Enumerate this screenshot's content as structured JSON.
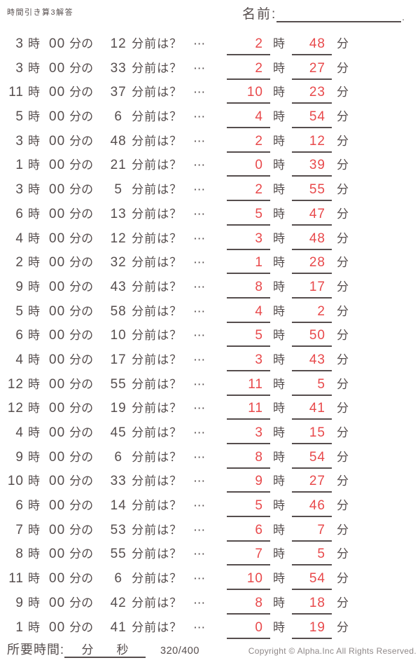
{
  "header": {
    "title": "時間引き算3解答",
    "name_label": "名前:",
    "name_suffix": "."
  },
  "row_text": {
    "hour_unit": "時",
    "zero_minutes": "00",
    "min_of": "分の",
    "before_question": "分前は？",
    "ellipsis": "⋯",
    "minute_unit": "分"
  },
  "problems": [
    {
      "hour": "3",
      "min": "12",
      "ans_hour": "2",
      "ans_min": "48"
    },
    {
      "hour": "3",
      "min": "33",
      "ans_hour": "2",
      "ans_min": "27"
    },
    {
      "hour": "11",
      "min": "37",
      "ans_hour": "10",
      "ans_min": "23"
    },
    {
      "hour": "5",
      "min": "6",
      "ans_hour": "4",
      "ans_min": "54"
    },
    {
      "hour": "3",
      "min": "48",
      "ans_hour": "2",
      "ans_min": "12"
    },
    {
      "hour": "1",
      "min": "21",
      "ans_hour": "0",
      "ans_min": "39"
    },
    {
      "hour": "3",
      "min": "5",
      "ans_hour": "2",
      "ans_min": "55"
    },
    {
      "hour": "6",
      "min": "13",
      "ans_hour": "5",
      "ans_min": "47"
    },
    {
      "hour": "4",
      "min": "12",
      "ans_hour": "3",
      "ans_min": "48"
    },
    {
      "hour": "2",
      "min": "32",
      "ans_hour": "1",
      "ans_min": "28"
    },
    {
      "hour": "9",
      "min": "43",
      "ans_hour": "8",
      "ans_min": "17"
    },
    {
      "hour": "5",
      "min": "58",
      "ans_hour": "4",
      "ans_min": "2"
    },
    {
      "hour": "6",
      "min": "10",
      "ans_hour": "5",
      "ans_min": "50"
    },
    {
      "hour": "4",
      "min": "17",
      "ans_hour": "3",
      "ans_min": "43"
    },
    {
      "hour": "12",
      "min": "55",
      "ans_hour": "11",
      "ans_min": "5"
    },
    {
      "hour": "12",
      "min": "19",
      "ans_hour": "11",
      "ans_min": "41"
    },
    {
      "hour": "4",
      "min": "45",
      "ans_hour": "3",
      "ans_min": "15"
    },
    {
      "hour": "9",
      "min": "6",
      "ans_hour": "8",
      "ans_min": "54"
    },
    {
      "hour": "10",
      "min": "33",
      "ans_hour": "9",
      "ans_min": "27"
    },
    {
      "hour": "6",
      "min": "14",
      "ans_hour": "5",
      "ans_min": "46"
    },
    {
      "hour": "7",
      "min": "53",
      "ans_hour": "6",
      "ans_min": "7"
    },
    {
      "hour": "8",
      "min": "55",
      "ans_hour": "7",
      "ans_min": "5"
    },
    {
      "hour": "11",
      "min": "6",
      "ans_hour": "10",
      "ans_min": "54"
    },
    {
      "hour": "9",
      "min": "42",
      "ans_hour": "8",
      "ans_min": "18"
    },
    {
      "hour": "1",
      "min": "41",
      "ans_hour": "0",
      "ans_min": "19"
    }
  ],
  "footer": {
    "time_label": "所要時間:",
    "minutes_label": "分",
    "seconds_label": "秒",
    "page": "320/400",
    "copyright": "Copyright ©  Alpha.Inc All Rights Reserved."
  },
  "colors": {
    "ink": "#564e4e",
    "red": "#e8494b",
    "muted": "#8f8888"
  }
}
